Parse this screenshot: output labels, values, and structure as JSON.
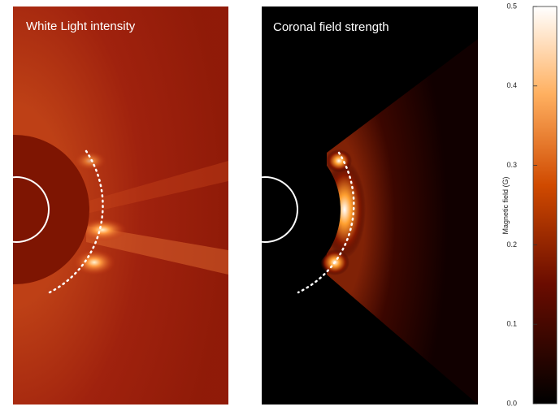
{
  "panels": [
    {
      "title": "White Light intensity"
    },
    {
      "title": "Coronal field strength"
    }
  ],
  "colorbar": {
    "label": "Magnetic field (G)",
    "lim": [
      0,
      0.5
    ],
    "ticks": [
      {
        "value": 0,
        "label": "0.0"
      },
      0.1,
      0.2,
      0.3,
      0.4,
      0.5
    ]
  }
}
